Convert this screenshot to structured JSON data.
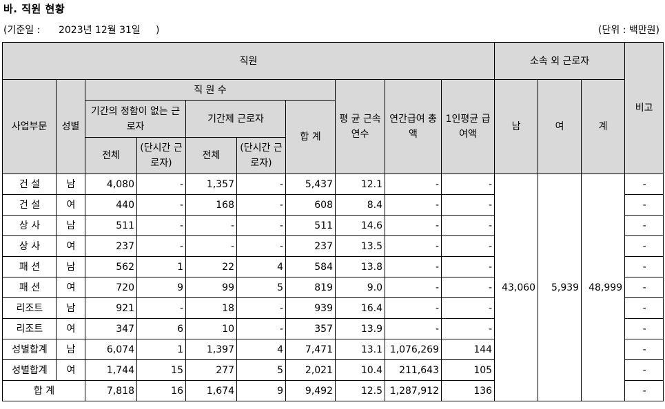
{
  "title": "바. 직원 현황",
  "base_date": "(기준일 :      2023년 12월 31일     )",
  "unit": "(단위 : 백만원)",
  "headers": {
    "employees": "직원",
    "outside_workers": "소속 외 근로자",
    "note": "비고",
    "division": "사업부문",
    "gender": "성별",
    "headcount": "직 원 수",
    "permanent": "기간의 정함이 없는 근로자",
    "fixed_term": "기간제 근로자",
    "subtotal": "합 계",
    "avg_tenure": "평 균 근속연수",
    "annual_pay": "연간급여 총 액",
    "avg_pay": "1인평균 급여액",
    "male": "남",
    "female": "여",
    "total": "계",
    "all": "전체",
    "part_time": "(단시간 근로자)"
  },
  "rows": [
    {
      "division": "건 설",
      "gender": "남",
      "perm_total": "4,080",
      "perm_part": "-",
      "fixed_total": "1,357",
      "fixed_part": "-",
      "sum": "5,437",
      "tenure": "12.1",
      "pay_total": "-",
      "pay_avg": "-",
      "note": "-"
    },
    {
      "division": "건 설",
      "gender": "여",
      "perm_total": "440",
      "perm_part": "-",
      "fixed_total": "168",
      "fixed_part": "-",
      "sum": "608",
      "tenure": "8.4",
      "pay_total": "-",
      "pay_avg": "-",
      "note": "-"
    },
    {
      "division": "상 사",
      "gender": "남",
      "perm_total": "511",
      "perm_part": "-",
      "fixed_total": "-",
      "fixed_part": "-",
      "sum": "511",
      "tenure": "14.6",
      "pay_total": "-",
      "pay_avg": "-",
      "note": "-"
    },
    {
      "division": "상 사",
      "gender": "여",
      "perm_total": "237",
      "perm_part": "-",
      "fixed_total": "-",
      "fixed_part": "-",
      "sum": "237",
      "tenure": "13.5",
      "pay_total": "-",
      "pay_avg": "-",
      "note": "-"
    },
    {
      "division": "패 션",
      "gender": "남",
      "perm_total": "562",
      "perm_part": "1",
      "fixed_total": "22",
      "fixed_part": "4",
      "sum": "584",
      "tenure": "13.8",
      "pay_total": "-",
      "pay_avg": "-",
      "note": "-"
    },
    {
      "division": "패 션",
      "gender": "여",
      "perm_total": "720",
      "perm_part": "9",
      "fixed_total": "99",
      "fixed_part": "5",
      "sum": "819",
      "tenure": "9.0",
      "pay_total": "-",
      "pay_avg": "-",
      "note": "-"
    },
    {
      "division": "리조트",
      "gender": "남",
      "perm_total": "921",
      "perm_part": "-",
      "fixed_total": "18",
      "fixed_part": "-",
      "sum": "939",
      "tenure": "16.4",
      "pay_total": "-",
      "pay_avg": "-",
      "note": "-"
    },
    {
      "division": "리조트",
      "gender": "여",
      "perm_total": "347",
      "perm_part": "6",
      "fixed_total": "10",
      "fixed_part": "-",
      "sum": "357",
      "tenure": "13.9",
      "pay_total": "-",
      "pay_avg": "-",
      "note": "-"
    },
    {
      "division": "성별합계",
      "gender": "남",
      "perm_total": "6,074",
      "perm_part": "1",
      "fixed_total": "1,397",
      "fixed_part": "4",
      "sum": "7,471",
      "tenure": "13.1",
      "pay_total": "1,076,269",
      "pay_avg": "144",
      "note": "-"
    },
    {
      "division": "성별합계",
      "gender": "여",
      "perm_total": "1,744",
      "perm_part": "15",
      "fixed_total": "277",
      "fixed_part": "5",
      "sum": "2,021",
      "tenure": "10.4",
      "pay_total": "211,643",
      "pay_avg": "105",
      "note": "-"
    }
  ],
  "total_row": {
    "label": "합 계",
    "perm_total": "7,818",
    "perm_part": "16",
    "fixed_total": "1,674",
    "fixed_part": "9",
    "sum": "9,492",
    "tenure": "12.5",
    "pay_total": "1,287,912",
    "pay_avg": "136",
    "note": "-"
  },
  "outside": {
    "male": "43,060",
    "female": "5,939",
    "total": "48,999"
  }
}
